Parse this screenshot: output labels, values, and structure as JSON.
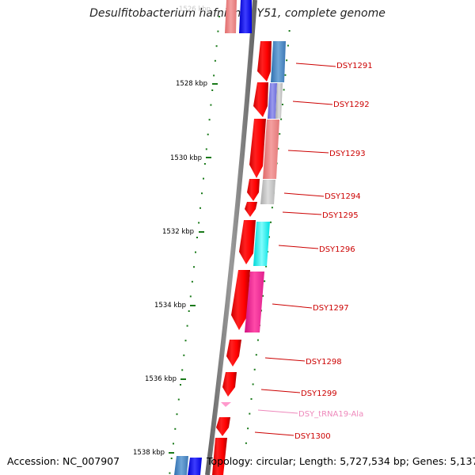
{
  "title": "Desulfitobacterium hafniense Y51, complete genome",
  "footer": {
    "accession": "Accession: NC_007907",
    "summary": "Topology: circular; Length: 5,727,534 bp; Genes: 5,137"
  },
  "scale": {
    "unit": "kbp",
    "ticks": [
      "1526 kbp",
      "1528 kbp",
      "1530 kbp",
      "1532 kbp",
      "1534 kbp",
      "1536 kbp",
      "1538 kbp"
    ]
  },
  "genes": [
    {
      "name": "DSY1291",
      "color": "#cc0000"
    },
    {
      "name": "DSY1292",
      "color": "#cc0000"
    },
    {
      "name": "DSY1293",
      "color": "#cc0000"
    },
    {
      "name": "DSY1294",
      "color": "#cc0000"
    },
    {
      "name": "DSY1295",
      "color": "#cc0000"
    },
    {
      "name": "DSY1296",
      "color": "#cc0000"
    },
    {
      "name": "DSY1297",
      "color": "#cc0000"
    },
    {
      "name": "DSY1298",
      "color": "#cc0000"
    },
    {
      "name": "DSY1299",
      "color": "#cc0000"
    },
    {
      "name": "DSY_tRNA19-Ala",
      "color": "#ee88bb"
    },
    {
      "name": "DSY1300",
      "color": "#cc0000"
    }
  ],
  "colors": {
    "cds": "#ff0000",
    "trna": "#ff99cc",
    "backbone": "#777777",
    "tick": "#1a7a1a"
  }
}
